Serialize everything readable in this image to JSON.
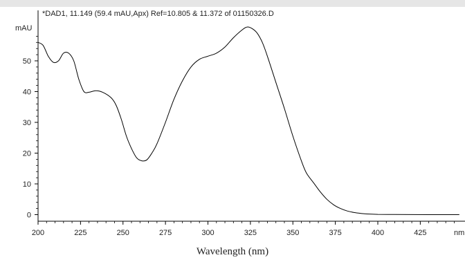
{
  "chart_data": {
    "type": "line",
    "title": "*DAD1, 11.149 (59.4 mAU,Apx) Ref=10.805 & 11.372 of 01150326.D",
    "xlabel": "Wavelength (nm)",
    "ylabel": "mAU",
    "x_unit": "nm",
    "xlim": [
      200,
      448
    ],
    "ylim": [
      -2,
      60
    ],
    "x_ticks": [
      200,
      225,
      250,
      275,
      300,
      325,
      350,
      375,
      400,
      425
    ],
    "y_ticks": [
      0,
      10,
      20,
      30,
      40,
      50
    ],
    "grid": false,
    "series": [
      {
        "color": "#000000",
        "x": [
          200,
          203,
          206,
          209,
          212,
          215,
          218,
          221,
          224,
          227,
          230,
          234,
          238,
          243,
          246,
          249,
          252,
          255,
          258,
          261,
          264,
          267,
          270,
          275,
          280,
          285,
          290,
          295,
          300,
          305,
          310,
          315,
          320,
          323,
          326,
          329,
          332,
          335,
          340,
          345,
          350,
          355,
          358,
          362,
          366,
          370,
          374,
          378,
          382,
          386,
          390,
          395,
          400,
          410,
          420,
          430,
          440,
          448
        ],
        "y": [
          56,
          55,
          51.5,
          49.5,
          50,
          52.5,
          52.5,
          50,
          44,
          40,
          39.8,
          40.3,
          39.8,
          38,
          35.5,
          31,
          25.5,
          21.5,
          18.5,
          17.5,
          17.8,
          20,
          23,
          30,
          37.5,
          43.5,
          48,
          50.5,
          51.5,
          52.5,
          54.5,
          57.5,
          60,
          61,
          60.5,
          59,
          56,
          51.5,
          43,
          34.5,
          25.5,
          17.5,
          13.5,
          10.5,
          7.5,
          5,
          3.2,
          2,
          1.2,
          0.7,
          0.4,
          0.2,
          0.1,
          0.05,
          0.02,
          0,
          0,
          0
        ]
      }
    ]
  }
}
